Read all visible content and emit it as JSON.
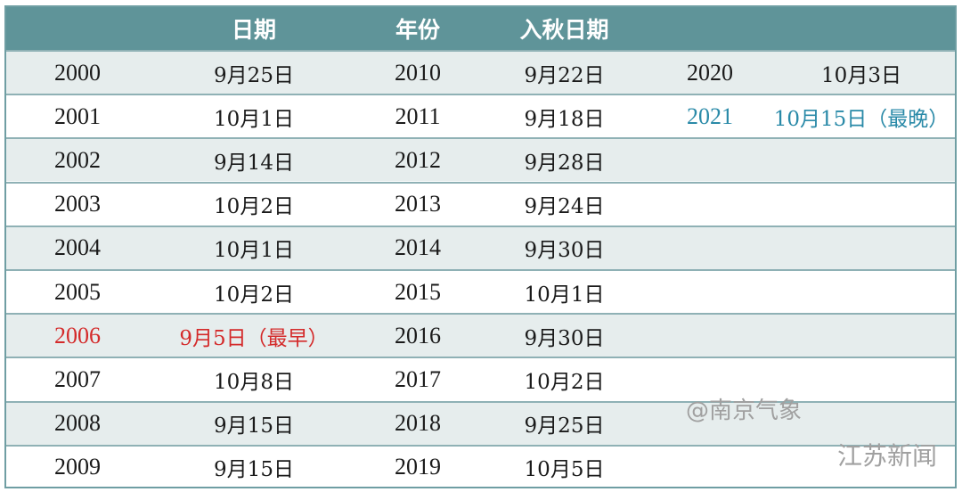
{
  "header": [
    "",
    "日期",
    "年份",
    "入秋日期",
    "",
    ""
  ],
  "rows": [
    [
      {
        "t": "2000"
      },
      {
        "t": "9月25日"
      },
      {
        "t": "2010"
      },
      {
        "t": "9月22日"
      },
      {
        "t": "2020"
      },
      {
        "t": "10月3日"
      }
    ],
    [
      {
        "t": "2001"
      },
      {
        "t": "10月1日"
      },
      {
        "t": "2011"
      },
      {
        "t": "9月18日"
      },
      {
        "t": "2021",
        "c": "blue"
      },
      {
        "t": "10月15日（最晚）",
        "c": "blue"
      }
    ],
    [
      {
        "t": "2002"
      },
      {
        "t": "9月14日"
      },
      {
        "t": "2012"
      },
      {
        "t": "9月28日"
      },
      {
        "t": ""
      },
      {
        "t": ""
      }
    ],
    [
      {
        "t": "2003"
      },
      {
        "t": "10月2日"
      },
      {
        "t": "2013"
      },
      {
        "t": "9月24日"
      },
      {
        "t": ""
      },
      {
        "t": ""
      }
    ],
    [
      {
        "t": "2004"
      },
      {
        "t": "10月1日"
      },
      {
        "t": "2014"
      },
      {
        "t": "9月30日"
      },
      {
        "t": ""
      },
      {
        "t": ""
      }
    ],
    [
      {
        "t": "2005"
      },
      {
        "t": "10月2日"
      },
      {
        "t": "2015"
      },
      {
        "t": "10月1日"
      },
      {
        "t": ""
      },
      {
        "t": ""
      }
    ],
    [
      {
        "t": "2006",
        "c": "red"
      },
      {
        "t": "9月5日（最早）",
        "c": "red"
      },
      {
        "t": "2016"
      },
      {
        "t": "9月30日"
      },
      {
        "t": ""
      },
      {
        "t": ""
      }
    ],
    [
      {
        "t": "2007"
      },
      {
        "t": "10月8日"
      },
      {
        "t": "2017"
      },
      {
        "t": "10月2日"
      },
      {
        "t": ""
      },
      {
        "t": ""
      }
    ],
    [
      {
        "t": "2008"
      },
      {
        "t": "9月15日"
      },
      {
        "t": "2018"
      },
      {
        "t": "9月25日"
      },
      {
        "t": ""
      },
      {
        "t": ""
      }
    ],
    [
      {
        "t": "2009"
      },
      {
        "t": "9月15日"
      },
      {
        "t": "2019"
      },
      {
        "t": "10月5日"
      },
      {
        "t": ""
      },
      {
        "t": ""
      }
    ]
  ],
  "colors": {
    "header_bg": "#5f9499",
    "earliest": "#d42a2a",
    "latest": "#2a8aa8",
    "row_shade": "#e6eded"
  },
  "watermarks": {
    "weibo": "@南京气象",
    "wechat": "江苏新闻"
  }
}
